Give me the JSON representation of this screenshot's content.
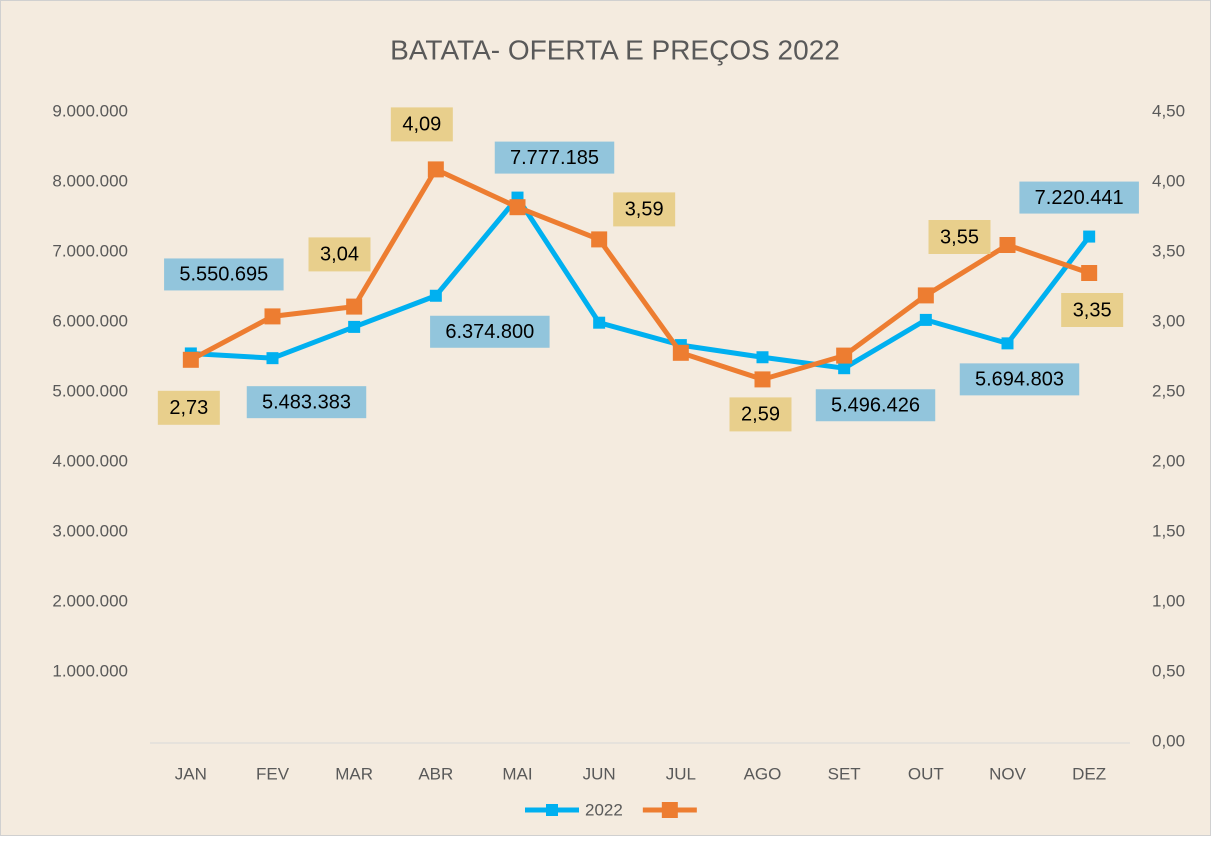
{
  "chart_data": {
    "type": "line",
    "title": "BATATA- OFERTA E PREÇOS 2022",
    "categories": [
      "JAN",
      "FEV",
      "MAR",
      "ABR",
      "MAI",
      "JUN",
      "JUL",
      "AGO",
      "SET",
      "OUT",
      "NOV",
      "DEZ"
    ],
    "series": [
      {
        "name": "2022",
        "color": "#00b0f0",
        "values": [
          5550695,
          5483383,
          5930000,
          6374800,
          7777185,
          5990000,
          5670000,
          5496426,
          5340000,
          6030000,
          5694803,
          7220441
        ],
        "value_labels": [
          "5.550.695",
          "5.483.383",
          null,
          "6.374.800",
          "7.777.185",
          null,
          null,
          "5.496.426",
          null,
          null,
          "5.694.803",
          "7.220.441"
        ]
      },
      {
        "color": "#ed7d31",
        "axis": "y2",
        "values": [
          2.73,
          3.04,
          3.11,
          4.09,
          3.82,
          3.59,
          2.78,
          2.59,
          2.76,
          3.19,
          3.55,
          3.35
        ],
        "value_labels": [
          "2,73",
          "3,04",
          null,
          "4,09",
          null,
          "3,59",
          null,
          "2,59",
          null,
          null,
          "3,55",
          "3,35"
        ]
      }
    ],
    "ylim": [
      0,
      9000000
    ],
    "yticks": [
      {
        "value": 1000000,
        "label": "1.000.000"
      },
      {
        "value": 2000000,
        "label": "2.000.000"
      },
      {
        "value": 3000000,
        "label": "3.000.000"
      },
      {
        "value": 4000000,
        "label": "4.000.000"
      },
      {
        "value": 5000000,
        "label": "5.000.000"
      },
      {
        "value": 6000000,
        "label": "6.000.000"
      },
      {
        "value": 7000000,
        "label": "7.000.000"
      },
      {
        "value": 8000000,
        "label": "8.000.000"
      },
      {
        "value": 9000000,
        "label": "9.000.000"
      }
    ],
    "y2lim": [
      0,
      4.5
    ],
    "y2ticks": [
      {
        "value": 0,
        "label": "0,00"
      },
      {
        "value": 0.5,
        "label": "0,50"
      },
      {
        "value": 1,
        "label": "1,00"
      },
      {
        "value": 1.5,
        "label": "1,50"
      },
      {
        "value": 2,
        "label": "2,00"
      },
      {
        "value": 2.5,
        "label": "2,50"
      },
      {
        "value": 3,
        "label": "3,00"
      },
      {
        "value": 3.5,
        "label": "3,50"
      },
      {
        "value": 4,
        "label": "4,00"
      },
      {
        "value": 4.5,
        "label": "4,50"
      }
    ],
    "label_colors": [
      "#92c5dc",
      "#e8cf8c"
    ],
    "legend": "bottom",
    "grid": false
  }
}
